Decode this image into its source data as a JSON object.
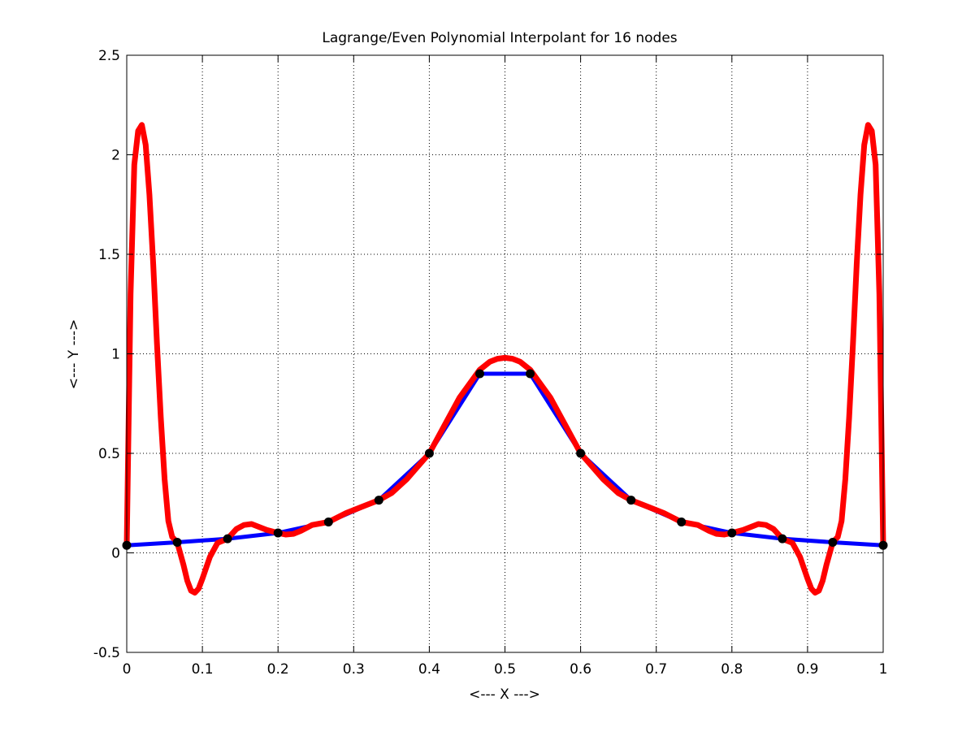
{
  "chart_data": {
    "type": "line",
    "title": "Lagrange/Even Polynomial Interpolant for 16 nodes",
    "xlabel": "<--- X --->",
    "ylabel": "<--- Y --->",
    "xlim": [
      0,
      1
    ],
    "ylim": [
      -0.5,
      2.5
    ],
    "xticks": [
      0,
      0.1,
      0.2,
      0.3,
      0.4,
      0.5,
      0.6,
      0.7,
      0.8,
      0.9,
      1
    ],
    "xtick_labels": [
      "0",
      "0.1",
      "0.2",
      "0.3",
      "0.4",
      "0.5",
      "0.6",
      "0.7",
      "0.8",
      "0.9",
      "1"
    ],
    "yticks": [
      -0.5,
      0,
      0.5,
      1,
      1.5,
      2,
      2.5
    ],
    "ytick_labels": [
      "-0.5",
      "0",
      "0.5",
      "1",
      "1.5",
      "2",
      "2.5"
    ],
    "grid": true,
    "series": [
      {
        "role": "piecewise-linear data",
        "color": "#0000ff",
        "style": "line",
        "x": [
          0,
          0.0667,
          0.1333,
          0.2,
          0.2667,
          0.3333,
          0.4,
          0.4667,
          0.5333,
          0.6,
          0.6667,
          0.7333,
          0.8,
          0.8667,
          0.9333,
          1
        ],
        "y": [
          0.038,
          0.053,
          0.071,
          0.1,
          0.155,
          0.265,
          0.5,
          0.9,
          0.9,
          0.5,
          0.265,
          0.155,
          0.1,
          0.071,
          0.053,
          0.038
        ]
      },
      {
        "role": "interpolating polynomial",
        "color": "#ff0000",
        "style": "line",
        "x": [
          0,
          0.005,
          0.01,
          0.015,
          0.02,
          0.025,
          0.03,
          0.035,
          0.04,
          0.045,
          0.05,
          0.055,
          0.06,
          0.0667,
          0.075,
          0.08,
          0.085,
          0.09,
          0.095,
          0.1,
          0.11,
          0.12,
          0.1333,
          0.145,
          0.155,
          0.165,
          0.175,
          0.185,
          0.2,
          0.21,
          0.22,
          0.23,
          0.245,
          0.2667,
          0.29,
          0.31,
          0.3333,
          0.35,
          0.37,
          0.4,
          0.42,
          0.44,
          0.4667,
          0.48,
          0.49,
          0.5,
          0.51,
          0.52,
          0.5333,
          0.56,
          0.58,
          0.6,
          0.63,
          0.65,
          0.6667,
          0.69,
          0.71,
          0.7333,
          0.755,
          0.77,
          0.78,
          0.79,
          0.8,
          0.815,
          0.825,
          0.835,
          0.845,
          0.855,
          0.8667,
          0.88,
          0.89,
          0.9,
          0.905,
          0.91,
          0.915,
          0.92,
          0.925,
          0.9333,
          0.94,
          0.945,
          0.95,
          0.955,
          0.96,
          0.965,
          0.97,
          0.975,
          0.98,
          0.985,
          0.99,
          0.995,
          1
        ],
        "y": [
          0.038,
          1.3,
          1.95,
          2.12,
          2.15,
          2.05,
          1.8,
          1.45,
          1.05,
          0.68,
          0.37,
          0.16,
          0.08,
          0.053,
          -0.06,
          -0.14,
          -0.19,
          -0.2,
          -0.18,
          -0.13,
          -0.02,
          0.05,
          0.071,
          0.12,
          0.14,
          0.145,
          0.13,
          0.115,
          0.1,
          0.092,
          0.095,
          0.11,
          0.14,
          0.155,
          0.2,
          0.23,
          0.265,
          0.3,
          0.37,
          0.5,
          0.64,
          0.78,
          0.92,
          0.96,
          0.975,
          0.98,
          0.975,
          0.96,
          0.92,
          0.78,
          0.64,
          0.5,
          0.37,
          0.3,
          0.265,
          0.23,
          0.2,
          0.155,
          0.14,
          0.11,
          0.095,
          0.092,
          0.1,
          0.115,
          0.13,
          0.145,
          0.14,
          0.12,
          0.071,
          0.05,
          -0.02,
          -0.13,
          -0.18,
          -0.2,
          -0.19,
          -0.14,
          -0.06,
          0.053,
          0.08,
          0.16,
          0.37,
          0.68,
          1.05,
          1.45,
          1.8,
          2.05,
          2.15,
          2.12,
          1.95,
          1.3,
          0.038
        ]
      },
      {
        "role": "nodes",
        "color": "#000000",
        "style": "markers",
        "x": [
          0,
          0.0667,
          0.1333,
          0.2,
          0.2667,
          0.3333,
          0.4,
          0.4667,
          0.5333,
          0.6,
          0.6667,
          0.7333,
          0.8,
          0.8667,
          0.9333,
          1
        ],
        "y": [
          0.038,
          0.053,
          0.071,
          0.1,
          0.155,
          0.265,
          0.5,
          0.9,
          0.9,
          0.5,
          0.265,
          0.155,
          0.1,
          0.071,
          0.053,
          0.038
        ]
      }
    ]
  }
}
